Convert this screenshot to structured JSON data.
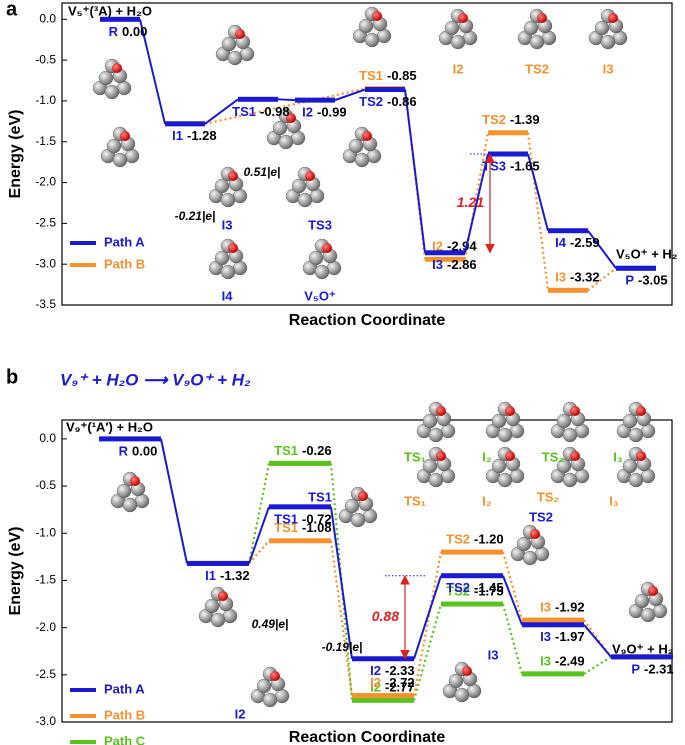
{
  "chart_data": [
    {
      "type": "profile",
      "panel": "a",
      "reactant": "V₅⁺(³A) + H₂O",
      "product": "V₅O⁺ + H₂",
      "y_label": "Energy (eV)",
      "x_label": "Reaction Coordinate",
      "ylim": [
        -3.5,
        0.2
      ],
      "yticks": [
        {
          "value": 0,
          "label": "0.0"
        },
        -0.5,
        {
          "value": -1,
          "label": "-1.0"
        },
        -1.5,
        {
          "value": -2,
          "label": "-2.0"
        },
        -2.5,
        {
          "value": -3,
          "label": "-3.0"
        },
        -3.5
      ],
      "series": [
        {
          "name": "Path A",
          "color": "#1a1ad0",
          "values": [
            0.0,
            -1.28,
            -0.98,
            -0.99,
            -0.86,
            -2.86,
            -1.65,
            -2.59,
            -3.05
          ],
          "value_labels": [
            "0.00",
            "-1.28",
            "-0.98",
            "-0.99",
            "-0.86",
            "-2.86",
            "-1.65",
            "-2.59",
            "-3.05"
          ],
          "state_labels": [
            "R",
            "I1",
            "TS1",
            "I2",
            "TS2",
            "I3",
            "TS3",
            "I4",
            "P"
          ]
        },
        {
          "name": "Path B",
          "color": "#f5922f",
          "values": [
            null,
            -1.28,
            null,
            null,
            -0.85,
            -2.94,
            -1.39,
            -3.32,
            -3.05
          ],
          "value_labels": [
            null,
            null,
            null,
            null,
            "-0.85",
            "-2.94",
            "-1.39",
            "-3.32",
            null
          ],
          "state_labels": [
            null,
            null,
            null,
            null,
            "TS1",
            "I2",
            "TS2",
            "I3",
            null
          ]
        }
      ],
      "annotation": {
        "text": "1.21",
        "from": -2.86,
        "to": -1.65,
        "color": "#e02020"
      },
      "structures": [
        {
          "label": "I2",
          "color": "#f5922f"
        },
        {
          "label": "TS2",
          "color": "#f5922f"
        },
        {
          "label": "I3",
          "color": "#f5922f"
        },
        {
          "label": "I3",
          "color": "#1a1ad0"
        },
        {
          "label": "TS3",
          "color": "#1a1ad0"
        },
        {
          "label": "I4",
          "color": "#1a1ad0"
        },
        {
          "label": "V₅O⁺",
          "color": "#1a1ad0"
        }
      ],
      "charges": [
        "0.51|e|",
        "-0.21|e|"
      ]
    },
    {
      "type": "profile",
      "panel": "b",
      "title": "V₉⁺ + H₂O ⟶ V₉O⁺ + H₂",
      "reactant": "V₉⁺(¹A′) + H₂O",
      "product": "V₉O⁺ + H₂",
      "y_label": "Energy (eV)",
      "x_label": "Reaction Coordinate",
      "ylim": [
        -3.0,
        0.2
      ],
      "yticks": [
        {
          "value": 0,
          "label": "0.0"
        },
        -0.5,
        {
          "value": -1,
          "label": "-1.0"
        },
        -1.5,
        {
          "value": -2,
          "label": "-2.0"
        },
        -2.5,
        {
          "value": -3,
          "label": "-3.0"
        }
      ],
      "series": [
        {
          "name": "Path A",
          "color": "#1a1ad0",
          "values": [
            0.0,
            -1.32,
            -0.72,
            -2.33,
            -1.45,
            -1.97,
            -2.31
          ],
          "value_labels": [
            "0.00",
            "-1.32",
            "-0.72",
            "-2.33",
            "-1.45",
            "-1.97",
            "-2.31"
          ],
          "state_labels": [
            "R",
            "I1",
            "TS1",
            "I2",
            "TS2",
            "I3",
            "P"
          ]
        },
        {
          "name": "Path B",
          "color": "#f5922f",
          "values": [
            null,
            -1.32,
            -1.08,
            -2.72,
            -1.2,
            -1.92,
            -2.31
          ],
          "value_labels": [
            null,
            null,
            "-1.08",
            "-2.72",
            "-1.20",
            "-1.92",
            null
          ],
          "state_labels": [
            null,
            null,
            "TS1",
            "I2",
            "TS2",
            "I3",
            null
          ]
        },
        {
          "name": "Path C",
          "color": "#5ac21e",
          "values": [
            null,
            -1.32,
            -0.26,
            -2.77,
            -1.75,
            -2.49,
            -2.31
          ],
          "value_labels": [
            null,
            null,
            "-0.26",
            "-2.77",
            "-1.75",
            "-2.49",
            null
          ],
          "state_labels": [
            null,
            null,
            "TS1",
            "I2",
            "TS2",
            "I3",
            null
          ]
        }
      ],
      "annotation": {
        "text": "0.88",
        "from": -2.33,
        "to": -1.45,
        "color": "#e02020"
      },
      "structures": [
        {
          "label": "TS1",
          "color": "#1a1ad0"
        },
        {
          "label": "I2",
          "color": "#1a1ad0"
        },
        {
          "label": "I3",
          "color": "#1a1ad0"
        },
        {
          "label": "TS2",
          "color": "#1a1ad0"
        },
        {
          "label": "TS₁",
          "color": "#5ac21e"
        },
        {
          "label": "I₂",
          "color": "#5ac21e"
        },
        {
          "label": "TS₂",
          "color": "#5ac21e"
        },
        {
          "label": "I₃",
          "color": "#5ac21e"
        },
        {
          "label": "TS₁",
          "color": "#f5922f"
        },
        {
          "label": "I₂",
          "color": "#f5922f"
        },
        {
          "label": "TS₂",
          "color": "#f5922f"
        },
        {
          "label": "I₃",
          "color": "#f5922f"
        }
      ],
      "charges": [
        "0.49|e|",
        "-0.19|e|"
      ]
    }
  ]
}
